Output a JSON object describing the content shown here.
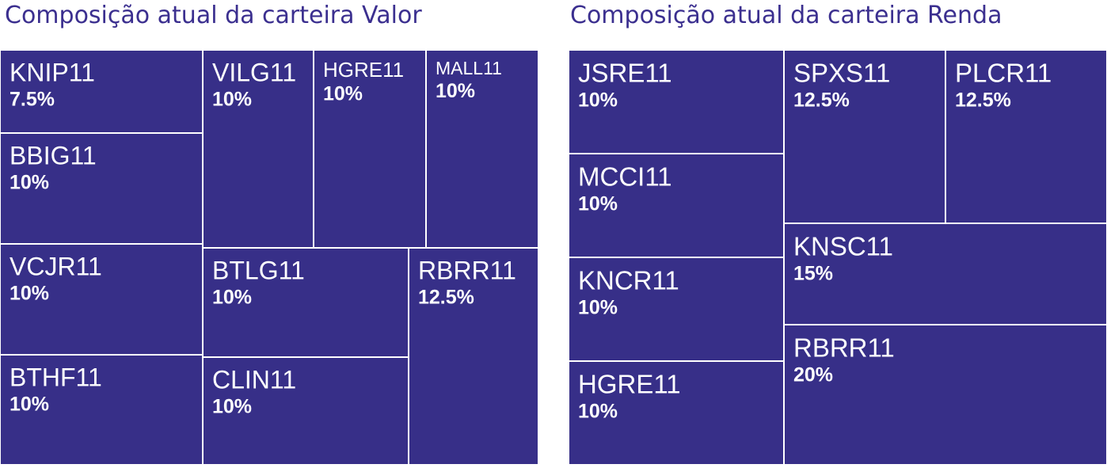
{
  "colors": {
    "tile": "#372f88",
    "border": "#ffffff",
    "label": "#ffffff",
    "title": "#3b2f8f"
  },
  "chart_data": [
    {
      "type": "treemap",
      "title": "Composição atual da carteira Valor",
      "items": [
        {
          "name": "KNIP11",
          "label": "7.5%",
          "value": 7.5
        },
        {
          "name": "BBIG11",
          "label": "10%",
          "value": 10
        },
        {
          "name": "VCJR11",
          "label": "10%",
          "value": 10
        },
        {
          "name": "BTHF11",
          "label": "10%",
          "value": 10
        },
        {
          "name": "VILG11",
          "label": "10%",
          "value": 10
        },
        {
          "name": "HGRE11",
          "label": "10%",
          "value": 10
        },
        {
          "name": "MALL11",
          "label": "10%",
          "value": 10
        },
        {
          "name": "BTLG11",
          "label": "10%",
          "value": 10
        },
        {
          "name": "CLIN11",
          "label": "10%",
          "value": 10
        },
        {
          "name": "RBRR11",
          "label": "12.5%",
          "value": 12.5
        }
      ]
    },
    {
      "type": "treemap",
      "title": "Composição atual da carteira Renda",
      "items": [
        {
          "name": "JSRE11",
          "label": "10%",
          "value": 10
        },
        {
          "name": "MCCI11",
          "label": "10%",
          "value": 10
        },
        {
          "name": "KNCR11",
          "label": "10%",
          "value": 10
        },
        {
          "name": "HGRE11",
          "label": "10%",
          "value": 10
        },
        {
          "name": "SPXS11",
          "label": "12.5%",
          "value": 12.5
        },
        {
          "name": "PLCR11",
          "label": "12.5%",
          "value": 12.5
        },
        {
          "name": "KNSC11",
          "label": "15%",
          "value": 15
        },
        {
          "name": "RBRR11",
          "label": "20%",
          "value": 20
        }
      ]
    }
  ]
}
